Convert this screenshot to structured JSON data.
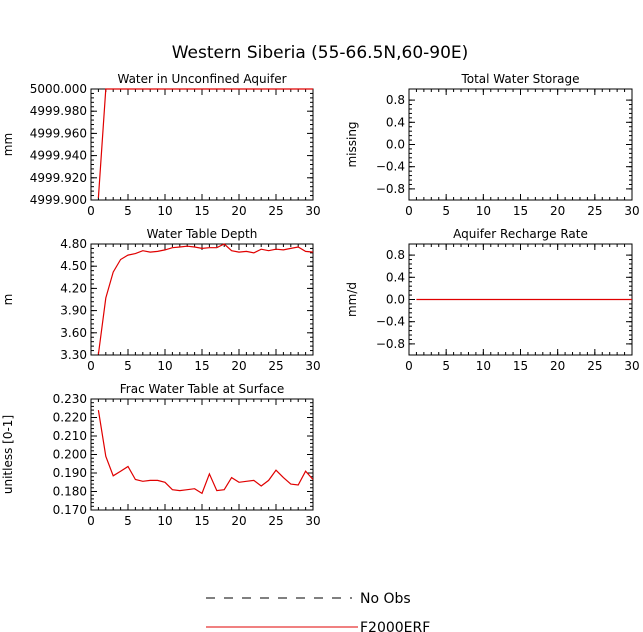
{
  "figure_title": "Western Siberia (55-66.5N,60-90E)",
  "legend": {
    "entries": [
      {
        "label": "No Obs",
        "style": "dashed",
        "color": "#000000"
      },
      {
        "label": "F2000ERF",
        "style": "solid",
        "color": "#e00000"
      }
    ]
  },
  "chart_data": [
    {
      "id": "water-unconfined",
      "type": "line",
      "title": "Water in Unconfined Aquifer",
      "ylabel": "mm",
      "xlim": [
        0,
        30
      ],
      "ylim": [
        4999.9,
        5000.0
      ],
      "xticks": [
        0,
        5,
        10,
        15,
        20,
        25,
        30
      ],
      "yticks": [
        4999.9,
        4999.92,
        4999.94,
        4999.96,
        4999.98,
        5000.0
      ],
      "ytick_labels": [
        "4999.900",
        "4999.920",
        "4999.940",
        "4999.960",
        "4999.980",
        "5000.000"
      ],
      "series": [
        {
          "name": "F2000ERF",
          "color": "#e00000",
          "x": [
            1,
            2,
            3,
            4,
            5,
            6,
            7,
            8,
            9,
            10,
            11,
            12,
            13,
            14,
            15,
            16,
            17,
            18,
            19,
            20,
            21,
            22,
            23,
            24,
            25,
            26,
            27,
            28,
            29,
            30
          ],
          "y": [
            4999.902,
            5000.0,
            5000.0,
            5000.0,
            5000.0,
            5000.0,
            5000.0,
            5000.0,
            5000.0,
            5000.0,
            5000.0,
            5000.0,
            5000.0,
            5000.0,
            5000.0,
            5000.0,
            5000.0,
            5000.0,
            5000.0,
            5000.0,
            5000.0,
            5000.0,
            5000.0,
            5000.0,
            5000.0,
            5000.0,
            5000.0,
            5000.0,
            5000.0,
            5000.0
          ]
        }
      ]
    },
    {
      "id": "total-water-storage",
      "type": "line",
      "title": "Total Water Storage",
      "ylabel": "missing",
      "xlim": [
        0,
        30
      ],
      "ylim": [
        -1.0,
        1.0
      ],
      "xticks": [
        0,
        5,
        10,
        15,
        20,
        25,
        30
      ],
      "yticks": [
        -0.8,
        -0.4,
        0.0,
        0.4,
        0.8
      ],
      "ytick_labels": [
        "−0.8",
        "−0.4",
        "0.0",
        "0.4",
        "0.8"
      ],
      "series": []
    },
    {
      "id": "water-table-depth",
      "type": "line",
      "title": "Water Table Depth",
      "ylabel": "m",
      "xlim": [
        0,
        30
      ],
      "ylim": [
        3.3,
        4.8
      ],
      "xticks": [
        0,
        5,
        10,
        15,
        20,
        25,
        30
      ],
      "yticks": [
        3.3,
        3.6,
        3.9,
        4.2,
        4.5,
        4.8
      ],
      "ytick_labels": [
        "3.30",
        "3.60",
        "3.90",
        "4.20",
        "4.50",
        "4.80"
      ],
      "series": [
        {
          "name": "F2000ERF",
          "color": "#e00000",
          "x": [
            1,
            2,
            3,
            4,
            5,
            6,
            7,
            8,
            9,
            10,
            11,
            12,
            13,
            14,
            15,
            16,
            17,
            18,
            19,
            20,
            21,
            22,
            23,
            24,
            25,
            26,
            27,
            28,
            29,
            30
          ],
          "y": [
            3.31,
            4.07,
            4.42,
            4.59,
            4.65,
            4.67,
            4.71,
            4.69,
            4.7,
            4.72,
            4.75,
            4.76,
            4.77,
            4.76,
            4.74,
            4.75,
            4.75,
            4.8,
            4.71,
            4.69,
            4.7,
            4.68,
            4.73,
            4.71,
            4.73,
            4.72,
            4.74,
            4.76,
            4.7,
            4.69
          ]
        }
      ]
    },
    {
      "id": "aquifer-recharge",
      "type": "line",
      "title": "Aquifer Recharge Rate",
      "ylabel": "mm/d",
      "xlim": [
        0,
        30
      ],
      "ylim": [
        -1.0,
        1.0
      ],
      "xticks": [
        0,
        5,
        10,
        15,
        20,
        25,
        30
      ],
      "yticks": [
        -0.8,
        -0.4,
        0.0,
        0.4,
        0.8
      ],
      "ytick_labels": [
        "−0.8",
        "−0.4",
        "0.0",
        "0.4",
        "0.8"
      ],
      "series": [
        {
          "name": "F2000ERF",
          "color": "#e00000",
          "x": [
            1,
            2,
            3,
            4,
            5,
            6,
            7,
            8,
            9,
            10,
            11,
            12,
            13,
            14,
            15,
            16,
            17,
            18,
            19,
            20,
            21,
            22,
            23,
            24,
            25,
            26,
            27,
            28,
            29,
            30
          ],
          "y": [
            0,
            0,
            0,
            0,
            0,
            0,
            0,
            0,
            0,
            0,
            0,
            0,
            0,
            0,
            0,
            0,
            0,
            0,
            0,
            0,
            0,
            0,
            0,
            0,
            0,
            0,
            0,
            0,
            0,
            0
          ]
        }
      ]
    },
    {
      "id": "frac-water-table",
      "type": "line",
      "title": "Frac Water Table at Surface",
      "ylabel": "unitless [0-1]",
      "xlim": [
        0,
        30
      ],
      "ylim": [
        0.17,
        0.23
      ],
      "xticks": [
        0,
        5,
        10,
        15,
        20,
        25,
        30
      ],
      "yticks": [
        0.17,
        0.18,
        0.19,
        0.2,
        0.21,
        0.22,
        0.23
      ],
      "ytick_labels": [
        "0.170",
        "0.180",
        "0.190",
        "0.200",
        "0.210",
        "0.220",
        "0.230"
      ],
      "series": [
        {
          "name": "F2000ERF",
          "color": "#e00000",
          "x": [
            1,
            2,
            3,
            4,
            5,
            6,
            7,
            8,
            9,
            10,
            11,
            12,
            13,
            14,
            15,
            16,
            17,
            18,
            19,
            20,
            21,
            22,
            23,
            24,
            25,
            26,
            27,
            28,
            29,
            30
          ],
          "y": [
            0.224,
            0.199,
            0.1885,
            0.191,
            0.1935,
            0.1865,
            0.1855,
            0.186,
            0.186,
            0.185,
            0.181,
            0.1805,
            0.181,
            0.1815,
            0.179,
            0.1895,
            0.1805,
            0.181,
            0.1875,
            0.185,
            0.1855,
            0.186,
            0.183,
            0.186,
            0.1915,
            0.1875,
            0.184,
            0.1835,
            0.191,
            0.1865
          ]
        }
      ]
    }
  ]
}
